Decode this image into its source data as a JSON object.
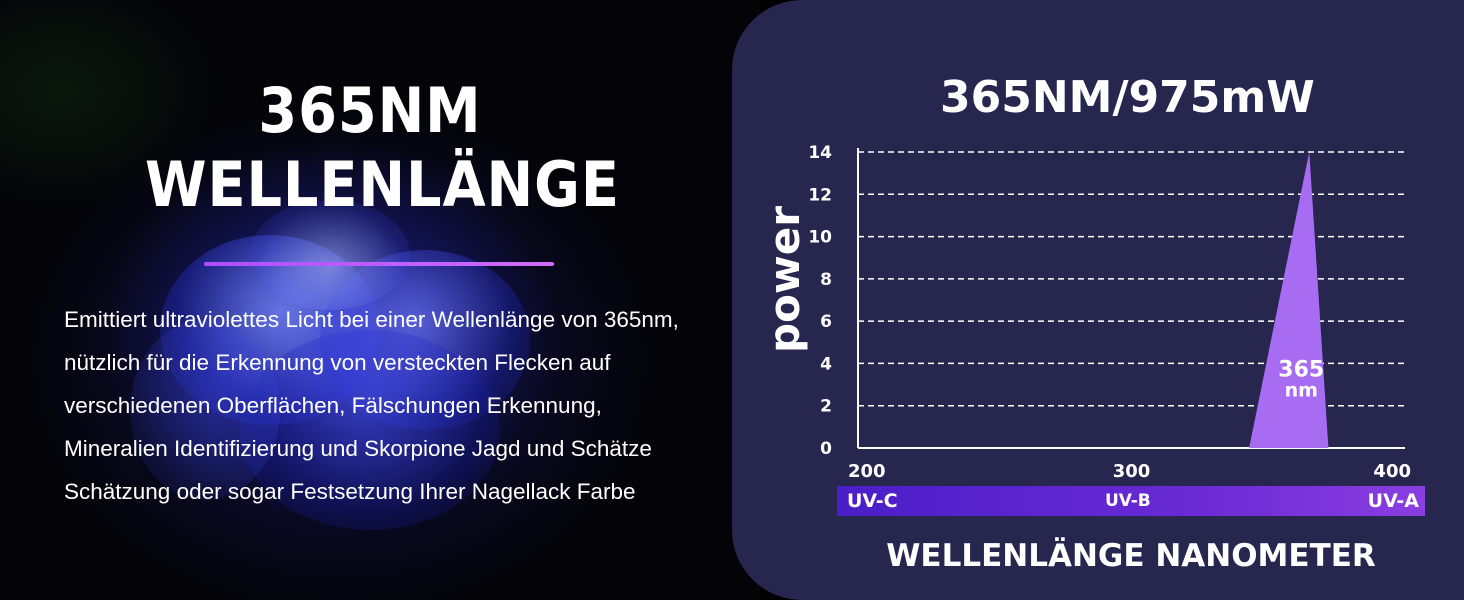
{
  "headline": {
    "line1": "365NM",
    "line2": "WELLENLÄNGE"
  },
  "description": "Emittiert ultraviolettes Licht bei einer Wellenlänge von 365nm, nützlich für die Erkennung von versteckten Flecken auf verschiedenen Oberflächen, Fälschungen Erkennung, Mineralien Identifizierung und Skorpione Jagd und Schätze Schätzung oder sogar Festsetzung Ihrer Nagellack Farbe",
  "chart_data": {
    "type": "area",
    "title": "365NM/975mW",
    "xlabel": "WELLENLÄNGE NANOMETER",
    "ylabel": "power",
    "xlim": [
      200,
      400
    ],
    "ylim": [
      0,
      14
    ],
    "x_ticks": [
      200,
      300,
      400
    ],
    "y_ticks": [
      0,
      2,
      4,
      6,
      8,
      10,
      12,
      14
    ],
    "grid": true,
    "series": [
      {
        "x": [
          343,
          365,
          372
        ],
        "y": [
          0,
          14,
          0
        ],
        "color": "#a86cf2"
      }
    ],
    "annotations": [
      {
        "x": 365,
        "y": 3,
        "text_line1": "365",
        "text_line2": "nm"
      }
    ],
    "bands": [
      "UV-C",
      "UV-B",
      "UV-A"
    ]
  },
  "colors": {
    "panel_bg": "#26264f",
    "peak_fill": "#a86cf2",
    "divider": "#b04cff",
    "band_start": "#4a1ec8",
    "band_end": "#8a3ee0"
  }
}
